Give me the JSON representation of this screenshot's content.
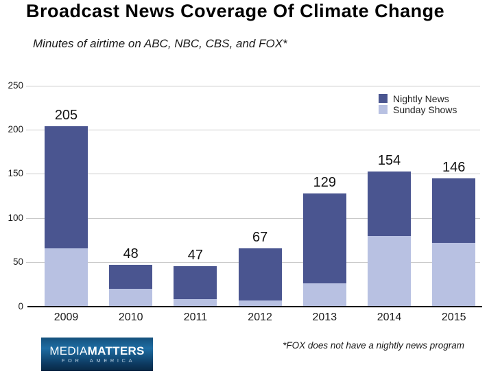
{
  "header": {
    "title": "Broadcast News Coverage Of Climate Change",
    "subtitle": "Minutes of airtime on ABC, NBC, CBS, and FOX*"
  },
  "legend": [
    {
      "label": "Nightly News",
      "color": "#4a5590"
    },
    {
      "label": "Sunday Shows",
      "color": "#b8c1e2"
    }
  ],
  "footnote": "*FOX does not have a nightly news program",
  "logo": {
    "media": "MEDIA",
    "matters": "MATTERS",
    "tagline": "FOR AMERICA"
  },
  "chart_data": {
    "type": "bar",
    "stacked": true,
    "title": "Broadcast News Coverage Of Climate Change",
    "subtitle": "Minutes of airtime on ABC, NBC, CBS, and FOX*",
    "xlabel": "",
    "ylabel": "Minutes of airtime",
    "ylim": [
      0,
      250
    ],
    "yticks": [
      0,
      50,
      100,
      150,
      200,
      250
    ],
    "grid": true,
    "legend_position": "top-right",
    "categories": [
      "2009",
      "2010",
      "2011",
      "2012",
      "2013",
      "2014",
      "2015"
    ],
    "series": [
      {
        "name": "Sunday Shows",
        "color": "#b8c1e2",
        "values": [
          67,
          21,
          9,
          8,
          27,
          81,
          73
        ]
      },
      {
        "name": "Nightly News",
        "color": "#4a5590",
        "values": [
          138,
          27,
          38,
          59,
          102,
          73,
          73
        ]
      }
    ],
    "totals": [
      205,
      48,
      47,
      67,
      129,
      154,
      146
    ],
    "colors": {
      "nightly": "#4a5590",
      "sunday": "#b8c1e2",
      "gridline": "#c9c9c9",
      "axis": "#111111"
    }
  }
}
